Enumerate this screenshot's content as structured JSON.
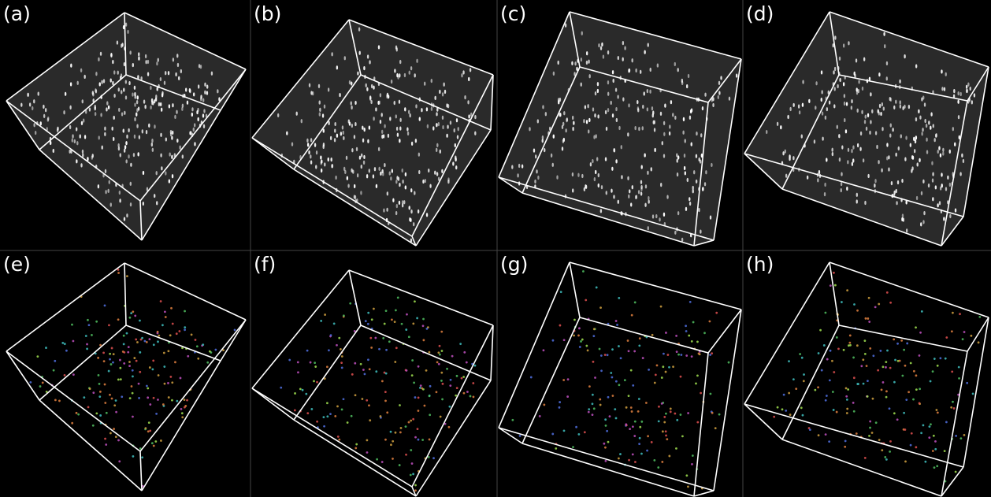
{
  "panels": {
    "labels": [
      "(a)",
      "(b)",
      "(c)",
      "(d)",
      "(e)",
      "(f)",
      "(g)",
      "(h)"
    ]
  }
}
